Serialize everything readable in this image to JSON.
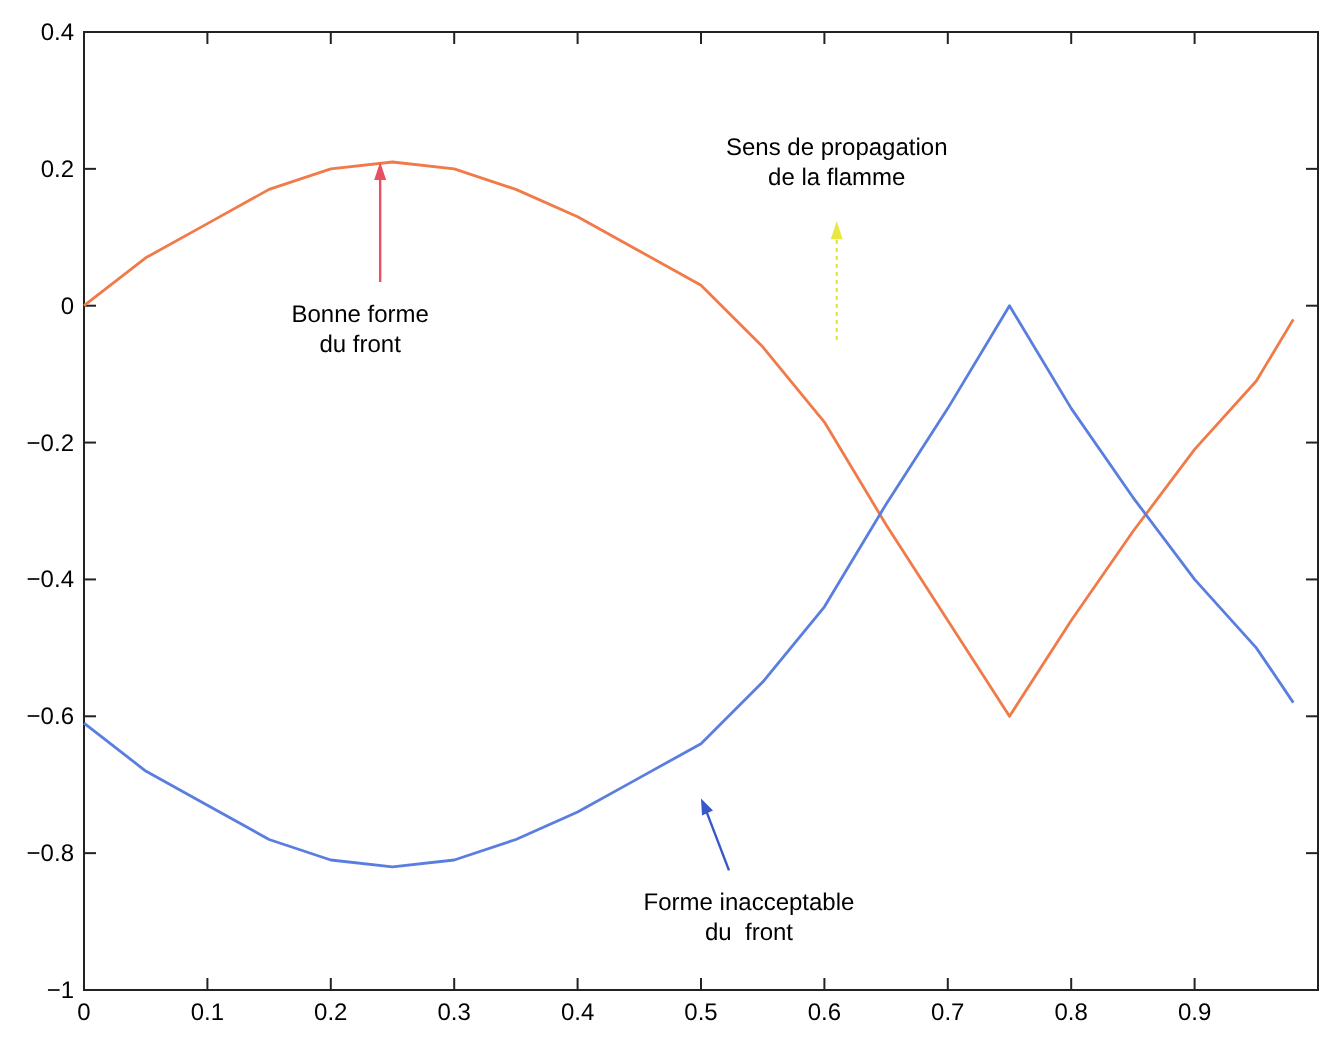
{
  "chart_data": {
    "type": "line",
    "x": [
      0,
      0.05,
      0.1,
      0.15,
      0.2,
      0.25,
      0.3,
      0.35,
      0.4,
      0.45,
      0.5,
      0.55,
      0.6,
      0.65,
      0.7,
      0.75,
      0.8,
      0.85,
      0.9,
      0.95,
      0.98
    ],
    "series": [
      {
        "color": "#f07a48",
        "values": [
          0,
          0.07,
          0.12,
          0.17,
          0.2,
          0.21,
          0.2,
          0.17,
          0.13,
          0.08,
          0.03,
          -0.06,
          -0.17,
          -0.32,
          -0.46,
          -0.6,
          -0.46,
          -0.33,
          -0.21,
          -0.11,
          -0.02
        ]
      },
      {
        "color": "#5a7ee0",
        "values": [
          -0.61,
          -0.68,
          -0.73,
          -0.78,
          -0.81,
          -0.82,
          -0.81,
          -0.78,
          -0.74,
          -0.69,
          -0.64,
          -0.55,
          -0.44,
          -0.29,
          -0.15,
          0,
          -0.15,
          -0.28,
          -0.4,
          -0.5,
          -0.58
        ]
      }
    ],
    "xlim": [
      0,
      1
    ],
    "xticks": [
      0,
      0.1,
      0.2,
      0.3,
      0.4,
      0.5,
      0.6,
      0.7,
      0.8,
      0.9
    ],
    "ylim": [
      -1,
      0.4
    ],
    "yticks": [
      -1,
      -0.8,
      -0.6,
      -0.4,
      -0.2,
      0,
      0.2,
      0.4
    ],
    "annotations": [
      {
        "text": "Bonne forme\ndu front",
        "x": 0.24,
        "y": 0.21
      },
      "Sens de propagation\nde la flamme",
      "Forme inacceptable\ndu  front"
    ]
  }
}
